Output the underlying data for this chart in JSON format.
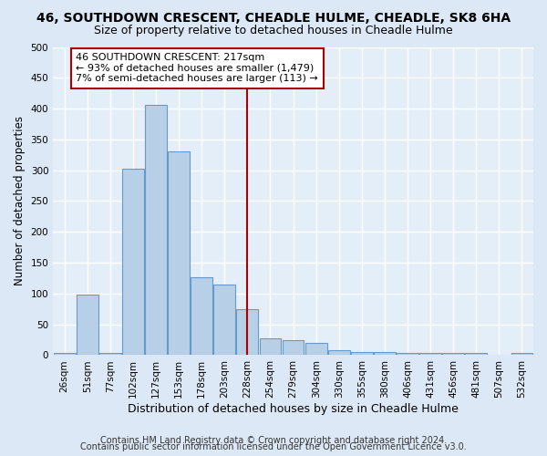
{
  "title": "46, SOUTHDOWN CRESCENT, CHEADLE HULME, CHEADLE, SK8 6HA",
  "subtitle": "Size of property relative to detached houses in Cheadle Hulme",
  "xlabel": "Distribution of detached houses by size in Cheadle Hulme",
  "ylabel": "Number of detached properties",
  "categories": [
    "26sqm",
    "51sqm",
    "77sqm",
    "102sqm",
    "127sqm",
    "153sqm",
    "178sqm",
    "203sqm",
    "228sqm",
    "254sqm",
    "279sqm",
    "304sqm",
    "330sqm",
    "355sqm",
    "380sqm",
    "406sqm",
    "431sqm",
    "456sqm",
    "481sqm",
    "507sqm",
    "532sqm"
  ],
  "values": [
    3,
    99,
    3,
    302,
    406,
    330,
    127,
    115,
    75,
    28,
    25,
    20,
    8,
    5,
    5,
    3,
    3,
    3,
    3,
    0,
    3
  ],
  "bar_color": "#b8cfe8",
  "bar_edge_color": "#6699cc",
  "vline_x_index": 8,
  "vline_color": "#aa0000",
  "annotation_text": "46 SOUTHDOWN CRESCENT: 217sqm\n← 93% of detached houses are smaller (1,479)\n7% of semi-detached houses are larger (113) →",
  "annotation_box_color": "#ffffff",
  "annotation_box_edge_color": "#aa0000",
  "ylim": [
    0,
    500
  ],
  "yticks": [
    0,
    50,
    100,
    150,
    200,
    250,
    300,
    350,
    400,
    450,
    500
  ],
  "footer1": "Contains HM Land Registry data © Crown copyright and database right 2024.",
  "footer2": "Contains public sector information licensed under the Open Government Licence v3.0.",
  "bg_color": "#dce8f5",
  "plot_bg_color": "#e4eef8",
  "grid_color": "#ffffff",
  "title_fontsize": 10,
  "subtitle_fontsize": 9,
  "xlabel_fontsize": 9,
  "ylabel_fontsize": 8.5,
  "tick_fontsize": 7.5,
  "annotation_fontsize": 8,
  "footer_fontsize": 7
}
